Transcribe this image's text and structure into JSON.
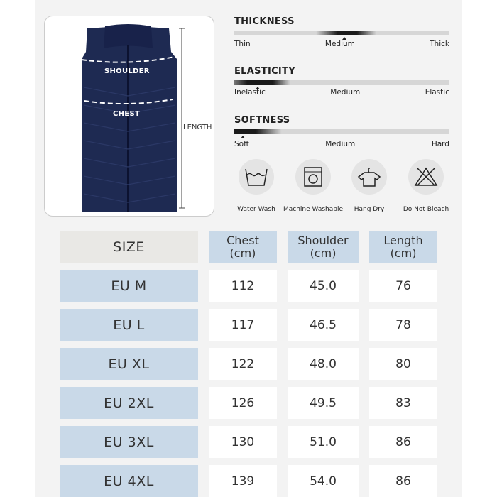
{
  "product_image": {
    "labels": {
      "shoulder": "SHOULDER",
      "chest": "CHEST",
      "length": "LENGTH"
    },
    "vest_color": "#1e2a52"
  },
  "attributes": [
    {
      "title": "THICKNESS",
      "scale": [
        "Thin",
        "Medium",
        "Thick"
      ],
      "level": 0.5
    },
    {
      "title": "ELASTICITY",
      "scale": [
        "Inelastic",
        "Medium",
        "Elastic"
      ],
      "level": 0.1
    },
    {
      "title": "SOFTNESS",
      "scale": [
        "Soft",
        "Medium",
        "Hard"
      ],
      "level": 0.03
    }
  ],
  "care": [
    {
      "label": "Water Wash",
      "icon": "water-wash-icon"
    },
    {
      "label": "Machine Washable",
      "icon": "washing-machine-icon"
    },
    {
      "label": "Hang Dry",
      "icon": "hang-dry-icon"
    },
    {
      "label": "Do Not Bleach",
      "icon": "do-not-bleach-icon"
    }
  ],
  "size_table": {
    "headers": [
      "SIZE",
      "Chest\n(cm)",
      "Shoulder\n(cm)",
      "Length\n(cm)"
    ],
    "rows": [
      [
        "EU M",
        "112",
        "45.0",
        "76"
      ],
      [
        "EU L",
        "117",
        "46.5",
        "78"
      ],
      [
        "EU XL",
        "122",
        "48.0",
        "80"
      ],
      [
        "EU 2XL",
        "126",
        "49.5",
        "83"
      ],
      [
        "EU 3XL",
        "130",
        "51.0",
        "86"
      ],
      [
        "EU 4XL",
        "139",
        "54.0",
        "86"
      ]
    ]
  },
  "colors": {
    "header_blue": "#c9d9e8",
    "size_header_grey": "#e9e8e5",
    "background": "#f3f3f3"
  }
}
